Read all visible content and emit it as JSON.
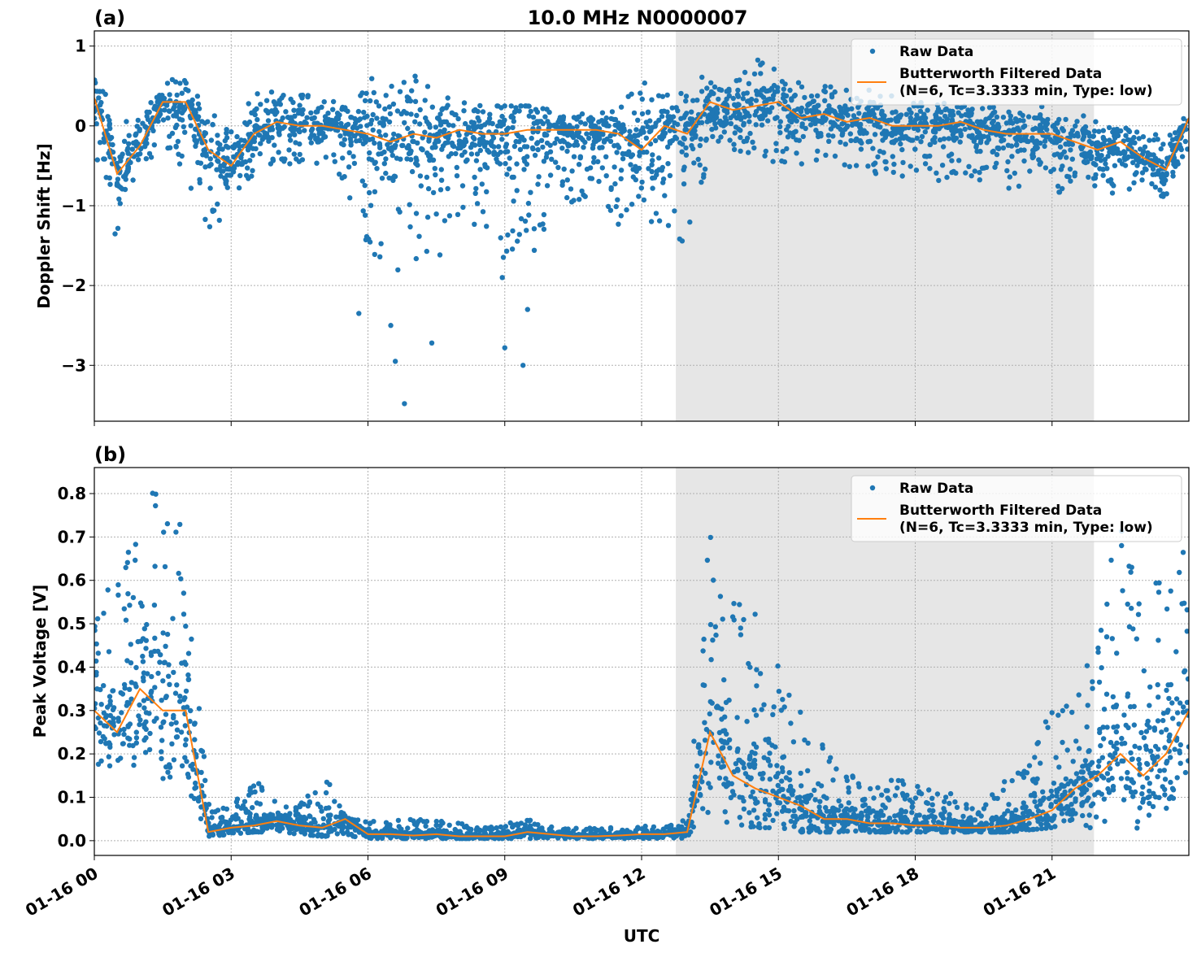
{
  "title": "10.0 MHz N0000007",
  "colors": {
    "raw": "#1f77b4",
    "filtered": "#ff7f0e",
    "shade": "#e6e6e6"
  },
  "chart_data": [
    {
      "type": "scatter",
      "panel_label": "(a)",
      "title": "10.0 MHz N0000007",
      "xlabel": "",
      "ylabel": "Doppler Shift [Hz]",
      "x_unit": "hours UTC on 01-16",
      "xlim": [
        0,
        24
      ],
      "ylim": [
        -3.7,
        1.19
      ],
      "yticks": [
        1,
        0,
        -1,
        -2,
        -3
      ],
      "ytick_labels": [
        "1",
        "0",
        "−1",
        "−2",
        "−3"
      ],
      "grid": true,
      "legend_placement": "upper-right",
      "shaded_interval": [
        12.75,
        21.92
      ],
      "x": [
        0,
        0.5,
        1,
        1.5,
        2,
        2.5,
        3,
        3.5,
        4,
        4.5,
        5,
        5.5,
        6,
        6.5,
        7,
        7.5,
        8,
        8.5,
        9,
        9.5,
        10,
        10.5,
        11,
        11.5,
        12,
        12.5,
        13,
        13.5,
        14,
        14.5,
        15,
        15.5,
        16,
        16.5,
        17,
        17.5,
        18,
        18.5,
        19,
        19.5,
        20,
        20.5,
        21,
        21.5,
        22,
        22.5,
        23,
        23.5,
        24
      ],
      "series": [
        {
          "name": "Butterworth Filtered Data\n(N=6, Tc=3.3333 min, Type: low)",
          "label_line1": "Butterworth Filtered Data",
          "label_line2": "(N=6, Tc=3.3333 min, Type: low)",
          "values": [
            0.35,
            -0.6,
            -0.25,
            0.3,
            0.3,
            -0.3,
            -0.5,
            -0.1,
            0.05,
            0.0,
            0.0,
            -0.05,
            -0.1,
            -0.2,
            -0.1,
            -0.15,
            -0.05,
            -0.1,
            -0.1,
            -0.05,
            -0.05,
            -0.05,
            -0.05,
            -0.1,
            -0.3,
            0.0,
            -0.1,
            0.3,
            0.2,
            0.25,
            0.3,
            0.1,
            0.15,
            0.05,
            0.1,
            0.0,
            0.0,
            0.0,
            0.05,
            -0.05,
            -0.1,
            -0.1,
            -0.1,
            -0.2,
            -0.3,
            -0.2,
            -0.4,
            -0.55,
            0.1
          ]
        },
        {
          "name": "Raw Data",
          "band_low": [
            -0.3,
            -1.5,
            -0.6,
            -0.2,
            -0.6,
            -1.4,
            -1.0,
            -0.6,
            -0.5,
            -0.5,
            -0.5,
            -0.8,
            -1.5,
            -2.2,
            -2.0,
            -1.8,
            -1.2,
            -1.3,
            -2.0,
            -1.8,
            -1.2,
            -1.0,
            -0.8,
            -1.3,
            -1.6,
            -1.2,
            -1.6,
            -0.4,
            -0.3,
            -0.4,
            -0.5,
            -0.6,
            -0.4,
            -0.5,
            -0.6,
            -0.6,
            -0.7,
            -0.7,
            -0.6,
            -0.7,
            -0.8,
            -0.8,
            -0.9,
            -0.7,
            -0.8,
            -0.9,
            -0.8,
            -0.9,
            -0.3
          ],
          "band_high": [
            0.9,
            0.1,
            0.1,
            0.55,
            0.65,
            0.2,
            0.1,
            0.4,
            0.5,
            0.4,
            0.35,
            0.3,
            0.6,
            0.6,
            0.65,
            0.4,
            0.3,
            0.25,
            0.25,
            0.25,
            0.2,
            0.15,
            0.15,
            0.2,
            0.75,
            0.5,
            0.5,
            0.7,
            0.7,
            0.85,
            0.7,
            0.55,
            0.5,
            0.5,
            0.45,
            0.4,
            0.3,
            0.3,
            0.35,
            0.3,
            0.3,
            0.25,
            0.25,
            0.35,
            0.1,
            0.1,
            0.0,
            -0.1,
            0.35
          ],
          "outliers": [
            [
              6.8,
              -3.48
            ],
            [
              9.4,
              -3.0
            ],
            [
              9.0,
              -2.78
            ],
            [
              6.6,
              -2.95
            ],
            [
              7.4,
              -2.72
            ],
            [
              5.8,
              -2.35
            ],
            [
              9.5,
              -2.3
            ],
            [
              6.5,
              -2.5
            ]
          ]
        }
      ]
    },
    {
      "type": "scatter",
      "panel_label": "(b)",
      "xlabel": "UTC",
      "ylabel": "Peak Voltage [V]",
      "xlim": [
        0,
        24
      ],
      "ylim": [
        -0.034,
        0.86
      ],
      "yticks": [
        0.0,
        0.1,
        0.2,
        0.3,
        0.4,
        0.5,
        0.6,
        0.7,
        0.8
      ],
      "ytick_labels": [
        "0.0",
        "0.1",
        "0.2",
        "0.3",
        "0.4",
        "0.5",
        "0.6",
        "0.7",
        "0.8"
      ],
      "xticks": [
        0,
        3,
        6,
        9,
        12,
        15,
        18,
        21
      ],
      "xtick_labels": [
        "01-16 00",
        "01-16 03",
        "01-16 06",
        "01-16 09",
        "01-16 12",
        "01-16 15",
        "01-16 18",
        "01-16 21"
      ],
      "grid": true,
      "legend_placement": "upper-right",
      "shaded_interval": [
        12.75,
        21.92
      ],
      "x": [
        0,
        0.5,
        1,
        1.5,
        2,
        2.5,
        3,
        3.5,
        4,
        4.5,
        5,
        5.5,
        6,
        6.5,
        7,
        7.5,
        8,
        8.5,
        9,
        9.5,
        10,
        10.5,
        11,
        11.5,
        12,
        12.5,
        13,
        13.5,
        14,
        14.5,
        15,
        15.5,
        16,
        16.5,
        17,
        17.5,
        18,
        18.5,
        19,
        19.5,
        20,
        20.5,
        21,
        21.5,
        22,
        22.5,
        23,
        23.5,
        24
      ],
      "series": [
        {
          "name": "Butterworth Filtered Data\n(N=6, Tc=3.3333 min, Type: low)",
          "label_line1": "Butterworth Filtered Data",
          "label_line2": "(N=6, Tc=3.3333 min, Type: low)",
          "values": [
            0.3,
            0.25,
            0.35,
            0.3,
            0.3,
            0.02,
            0.03,
            0.035,
            0.045,
            0.035,
            0.03,
            0.05,
            0.015,
            0.015,
            0.012,
            0.015,
            0.01,
            0.01,
            0.01,
            0.02,
            0.015,
            0.01,
            0.01,
            0.012,
            0.015,
            0.015,
            0.02,
            0.25,
            0.15,
            0.12,
            0.1,
            0.08,
            0.05,
            0.05,
            0.04,
            0.04,
            0.035,
            0.035,
            0.03,
            0.03,
            0.035,
            0.05,
            0.07,
            0.12,
            0.15,
            0.2,
            0.15,
            0.2,
            0.3
          ]
        },
        {
          "name": "Raw Data",
          "band_low": [
            0.1,
            0.1,
            0.05,
            0.08,
            0.1,
            0.01,
            0.015,
            0.02,
            0.02,
            0.015,
            0.01,
            0.01,
            0.005,
            0.005,
            0.005,
            0.005,
            0.005,
            0.005,
            0.005,
            0.005,
            0.005,
            0.005,
            0.005,
            0.005,
            0.005,
            0.005,
            0.005,
            0.05,
            0.04,
            0.03,
            0.03,
            0.02,
            0.02,
            0.02,
            0.02,
            0.02,
            0.02,
            0.02,
            0.02,
            0.02,
            0.02,
            0.025,
            0.03,
            0.05,
            0.02,
            0.02,
            0.01,
            0.02,
            0.05
          ],
          "band_high": [
            0.55,
            0.6,
            0.82,
            0.8,
            0.72,
            0.09,
            0.08,
            0.14,
            0.1,
            0.08,
            0.17,
            0.06,
            0.05,
            0.05,
            0.05,
            0.05,
            0.04,
            0.03,
            0.04,
            0.05,
            0.04,
            0.03,
            0.03,
            0.03,
            0.04,
            0.03,
            0.05,
            0.74,
            0.55,
            0.55,
            0.4,
            0.3,
            0.22,
            0.15,
            0.15,
            0.15,
            0.14,
            0.12,
            0.1,
            0.1,
            0.15,
            0.2,
            0.35,
            0.35,
            0.5,
            0.75,
            0.6,
            0.6,
            0.7
          ],
          "outliers": []
        }
      ]
    }
  ]
}
